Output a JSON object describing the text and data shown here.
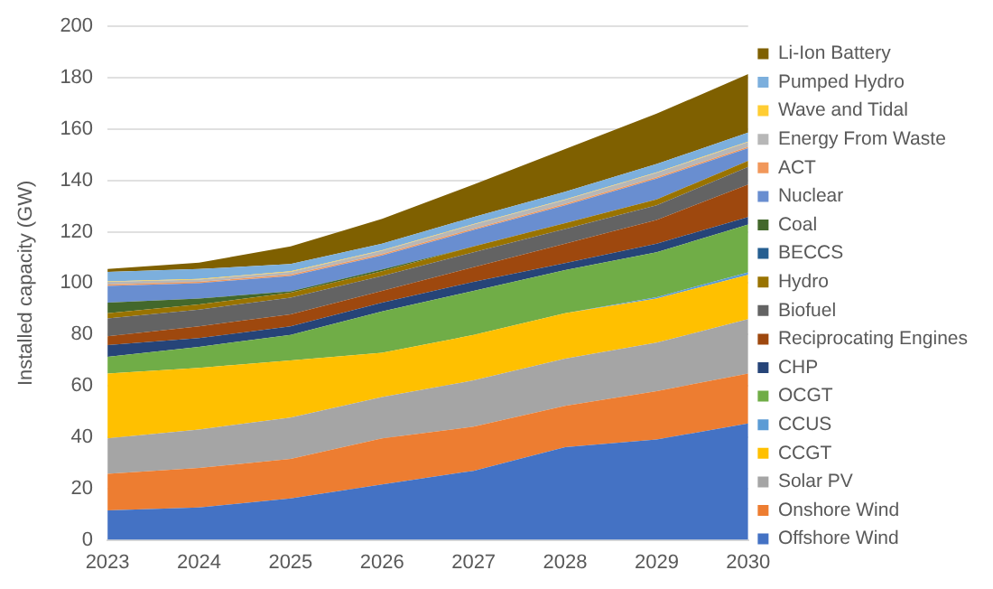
{
  "chart_data": {
    "type": "area",
    "stacked": true,
    "ylabel": "Installed capacity (GW)",
    "categories": [
      "2023",
      "2024",
      "2025",
      "2026",
      "2027",
      "2028",
      "2029",
      "2030"
    ],
    "ylim": [
      0,
      200
    ],
    "yticks": [
      0,
      20,
      40,
      60,
      80,
      100,
      120,
      140,
      160,
      180,
      200
    ],
    "grid": "y",
    "legend": "right",
    "series": [
      {
        "name": "Offshore Wind",
        "color": "#4472c4",
        "values": [
          11.5,
          12.6,
          16.1,
          21.6,
          26.9,
          36.1,
          39.1,
          45.3
        ]
      },
      {
        "name": "Onshore Wind",
        "color": "#ed7d31",
        "values": [
          14.2,
          15.4,
          15.4,
          17.9,
          17.2,
          16.1,
          18.8,
          19.5
        ]
      },
      {
        "name": "Solar PV",
        "color": "#a5a5a5",
        "values": [
          13.8,
          15,
          16.1,
          16.1,
          18,
          18.4,
          18.9,
          21.2
        ]
      },
      {
        "name": "CCGT",
        "color": "#ffc000",
        "values": [
          25.3,
          24,
          22.3,
          17.3,
          17.7,
          17.7,
          17.2,
          17.2
        ]
      },
      {
        "name": "CCUS",
        "color": "#5b9bd5",
        "values": [
          0,
          0,
          0,
          0,
          0,
          0,
          0.5,
          1
        ]
      },
      {
        "name": "OCGT",
        "color": "#70ad47",
        "values": [
          6.5,
          8.2,
          9.9,
          16.1,
          17.2,
          16.8,
          17.5,
          18.6
        ]
      },
      {
        "name": "CHP",
        "color": "#264478",
        "values": [
          4.6,
          3.4,
          3.4,
          3.4,
          3.5,
          2.7,
          3.4,
          2.9
        ]
      },
      {
        "name": "Reciprocating Engines",
        "color": "#9e480e",
        "values": [
          3.4,
          4.6,
          4.6,
          4.6,
          5.7,
          7.6,
          9.2,
          12.7
        ]
      },
      {
        "name": "Biofuel",
        "color": "#636363",
        "values": [
          6.9,
          6.5,
          6.5,
          5.8,
          5.8,
          5.7,
          5.7,
          6.9
        ]
      },
      {
        "name": "Hydro",
        "color": "#997300",
        "values": [
          2.1,
          2,
          2,
          1.8,
          2.3,
          2.3,
          2.3,
          2.3
        ]
      },
      {
        "name": "BECCS",
        "color": "#255e91",
        "values": [
          null,
          null,
          null,
          null,
          null,
          null,
          null,
          null
        ]
      },
      {
        "name": "Coal",
        "color": "#43682b",
        "values": [
          4.1,
          2.3,
          0.5,
          0.7,
          0,
          0,
          0,
          0
        ]
      },
      {
        "name": "Nuclear",
        "color": "#698ed0",
        "values": [
          6.5,
          6,
          6,
          5.5,
          6.4,
          6.9,
          8.1,
          5
        ]
      },
      {
        "name": "ACT",
        "color": "#f1975a",
        "values": [
          0.5,
          0.5,
          0.5,
          0.5,
          0.5,
          0.5,
          0.5,
          0.5
        ]
      },
      {
        "name": "Energy From Waste",
        "color": "#b7b7b7",
        "values": [
          1.1,
          0.9,
          1.1,
          1.3,
          1.6,
          1.6,
          1.8,
          1.8
        ]
      },
      {
        "name": "Wave and Tidal",
        "color": "#ffcd33",
        "values": [
          0.2,
          0.2,
          0.2,
          0.2,
          0.2,
          0.2,
          0.2,
          0.2
        ]
      },
      {
        "name": "Pumped Hydro",
        "color": "#7cafdd",
        "values": [
          3.7,
          3.9,
          2.8,
          2.6,
          2.7,
          3,
          3.2,
          3.5
        ]
      },
      {
        "name": "Li-Ion Battery",
        "color": "#7f6000",
        "values": [
          1.1,
          2.5,
          6.9,
          9.6,
          12.7,
          16.6,
          19.6,
          22.8
        ]
      }
    ]
  }
}
